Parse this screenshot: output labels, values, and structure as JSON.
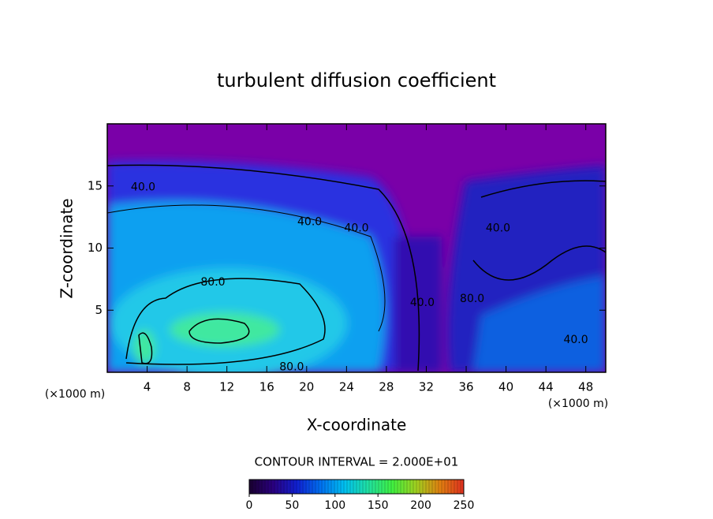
{
  "chart_data": {
    "type": "contour",
    "title": "turbulent diffusion coefficient",
    "xlabel": "X-coordinate",
    "ylabel": "Z-coordinate",
    "x_unit": "(×1000 m)",
    "xlim": [
      0,
      50
    ],
    "xticks": [
      4,
      8,
      12,
      16,
      20,
      24,
      28,
      32,
      36,
      40,
      44,
      48
    ],
    "ylim": [
      0,
      20
    ],
    "yticks": [
      5,
      10,
      15
    ],
    "annotations": [
      {
        "text": "40.0",
        "x": 3.6,
        "y": 14.9
      },
      {
        "text": "40.0",
        "x": 20.3,
        "y": 12.1
      },
      {
        "text": "40.0",
        "x": 25.0,
        "y": 11.6
      },
      {
        "text": "40.0",
        "x": 39.2,
        "y": 11.6
      },
      {
        "text": "80.0",
        "x": 10.6,
        "y": 7.25
      },
      {
        "text": "80.0",
        "x": 18.5,
        "y": 0.4
      },
      {
        "text": "40.0",
        "x": 31.6,
        "y": 5.6
      },
      {
        "text": "80.0",
        "x": 36.6,
        "y": 5.9
      },
      {
        "text": "40.0",
        "x": 47.0,
        "y": 2.6
      }
    ],
    "colorbar": {
      "label": "CONTOUR INTERVAL = 2.000E+01",
      "lim": [
        0,
        250
      ],
      "ticks": [
        0,
        50,
        100,
        150,
        200,
        250
      ],
      "colormap": [
        "#1a0030",
        "#2a0080",
        "#1020d0",
        "#0070f0",
        "#00c0f0",
        "#20e0a0",
        "#40f040",
        "#a0d020",
        "#e08010",
        "#e03020"
      ]
    }
  }
}
